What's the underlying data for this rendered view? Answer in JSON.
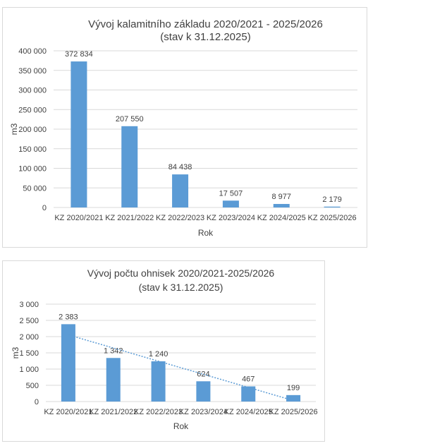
{
  "chart_data": [
    {
      "type": "bar",
      "title": "Vývoj kalamitního základu 2020/2021 - 2025/2026",
      "subtitle": "(stav k 31.12.2025)",
      "xlabel": "Rok",
      "ylabel": "m3",
      "ylim": [
        0,
        400000
      ],
      "yticks": [
        0,
        50000,
        100000,
        150000,
        200000,
        250000,
        300000,
        350000,
        400000
      ],
      "ytick_labels": [
        "0",
        "50 000",
        "100 000",
        "150 000",
        "200 000",
        "250 000",
        "300 000",
        "350 000",
        "400 000"
      ],
      "categories": [
        "KZ 2020/2021",
        "KZ 2021/2022",
        "KZ 2022/2023",
        "KZ 2023/2024",
        "KZ 2024/2025",
        "KZ 2025/2026"
      ],
      "values": [
        372834,
        207550,
        84438,
        17507,
        8977,
        2179
      ],
      "data_labels": [
        "372 834",
        "207 550",
        "84 438",
        "17 507",
        "8 977",
        "2 179"
      ],
      "grid": true,
      "trendline": false,
      "bar_color": "#5b9bd5"
    },
    {
      "type": "bar",
      "title": "Vývoj počtu ohnisek 2020/2021-2025/2026",
      "subtitle": "(stav k 31.12.2025)",
      "xlabel": "Rok",
      "ylabel": "m3",
      "ylim": [
        0,
        3000
      ],
      "yticks": [
        0,
        500,
        1000,
        1500,
        2000,
        2500,
        3000
      ],
      "ytick_labels": [
        "0",
        "500",
        "1 000",
        "1 500",
        "2 000",
        "2 500",
        "3 000"
      ],
      "categories": [
        "KZ 2020/2021",
        "KZ 2021/2022",
        "KZ 2022/2023",
        "KZ 2023/2024",
        "KZ 2024/2025",
        "KZ 2025/2026"
      ],
      "values": [
        2383,
        1342,
        1240,
        624,
        467,
        199
      ],
      "data_labels": [
        "2 383",
        "1 342",
        "1 240",
        "624",
        "467",
        "199"
      ],
      "grid": true,
      "trendline": "linear",
      "bar_color": "#5b9bd5"
    }
  ]
}
